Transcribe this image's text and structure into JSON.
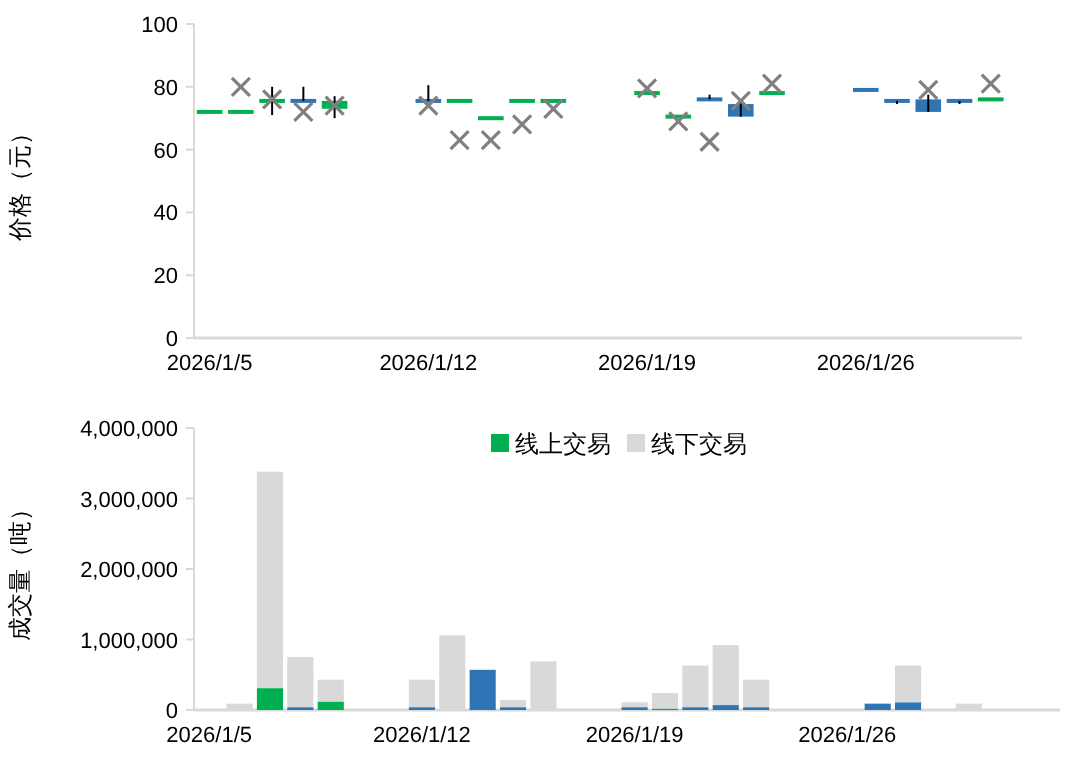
{
  "chart_data": [
    {
      "type": "candlestick",
      "ylabel": "价格（元）",
      "x": [
        "2026-01-05",
        "2026-01-06",
        "2026-01-07",
        "2026-01-08",
        "2026-01-09",
        "2026-01-12",
        "2026-01-13",
        "2026-01-14",
        "2026-01-15",
        "2026-01-16",
        "2026-01-19",
        "2026-01-20",
        "2026-01-21",
        "2026-01-22",
        "2026-01-23",
        "2026-01-26",
        "2026-01-27",
        "2026-01-28",
        "2026-01-29",
        "2026-01-30"
      ],
      "ohlc": [
        [
          72,
          72,
          72,
          72
        ],
        [
          72,
          72,
          72,
          72
        ],
        [
          75.5,
          80,
          71,
          75.5
        ],
        [
          75.5,
          80,
          75.5,
          75.5
        ],
        [
          73,
          77,
          70,
          75.5
        ],
        [
          75.5,
          80.5,
          75.5,
          75.5
        ],
        [
          75.5,
          75.5,
          75.5,
          75.5
        ],
        [
          70,
          70,
          70,
          70
        ],
        [
          75.5,
          75.5,
          75.5,
          75.5
        ],
        [
          75.5,
          75.5,
          75.5,
          75.5
        ],
        [
          78,
          78,
          78,
          78
        ],
        [
          70.5,
          70.5,
          70.5,
          70.5
        ],
        [
          76,
          77.5,
          76,
          76
        ],
        [
          74.5,
          76,
          70.5,
          70.5
        ],
        [
          78,
          78,
          78,
          78
        ],
        [
          79,
          79,
          79,
          79
        ],
        [
          75.5,
          75.5,
          74.5,
          75.5
        ],
        [
          76,
          77.5,
          72,
          72
        ],
        [
          75.5,
          75.5,
          74.5,
          75.5
        ],
        [
          76,
          76,
          76,
          76
        ]
      ],
      "colors": [
        "#00b050",
        "#00b050",
        "#00b050",
        "#2e75b6",
        "#00b050",
        "#2e75b6",
        "#00b050",
        "#00b050",
        "#00b050",
        "#00b050",
        "#00b050",
        "#00b050",
        "#2e75b6",
        "#2e75b6",
        "#00b050",
        "#2e75b6",
        "#2e75b6",
        "#2e75b6",
        "#2e75b6",
        "#00b050"
      ],
      "series": [
        {
          "type": "scatter",
          "marker": "cross",
          "color": "#808080",
          "x": [
            "2026-01-06",
            "2026-01-07",
            "2026-01-08",
            "2026-01-09",
            "2026-01-12",
            "2026-01-13",
            "2026-01-14",
            "2026-01-15",
            "2026-01-16",
            "2026-01-19",
            "2026-01-20",
            "2026-01-21",
            "2026-01-22",
            "2026-01-23",
            "2026-01-28",
            "2026-01-30"
          ],
          "values": [
            80,
            76,
            72,
            74,
            74,
            63,
            63,
            68,
            73,
            79.5,
            69,
            62.5,
            75.5,
            81,
            79,
            81
          ]
        }
      ],
      "xlim": [
        "2026-01-04T12:00",
        "2026-01-31"
      ],
      "xticks": [
        {
          "value": "2026-01-05",
          "label": "2026/1/5"
        },
        {
          "value": "2026-01-12",
          "label": "2026/1/12"
        },
        {
          "value": "2026-01-19",
          "label": "2026/1/19"
        },
        {
          "value": "2026-01-26",
          "label": "2026/1/26"
        }
      ],
      "ylim": [
        0,
        100
      ],
      "yticks": [
        0,
        20,
        40,
        60,
        80,
        100
      ],
      "grid": false
    },
    {
      "type": "bar",
      "stacked": true,
      "ylabel": "成交量（吨）",
      "legend": "top",
      "x": [
        "2026-01-06",
        "2026-01-07",
        "2026-01-08",
        "2026-01-09",
        "2026-01-12",
        "2026-01-13",
        "2026-01-14",
        "2026-01-15",
        "2026-01-16",
        "2026-01-19",
        "2026-01-20",
        "2026-01-21",
        "2026-01-22",
        "2026-01-23",
        "2026-01-27",
        "2026-01-28",
        "2026-01-30"
      ],
      "series": [
        {
          "name": "线上交易",
          "color": "#00b050",
          "colors": [
            null,
            "#00b050",
            "#2e75b6",
            "#00b050",
            "#2e75b6",
            null,
            "#2e75b6",
            "#2e75b6",
            null,
            "#2e75b6",
            "#00b050",
            "#2e75b6",
            "#2e75b6",
            "#2e75b6",
            "#2e75b6",
            "#2e75b6",
            null
          ],
          "values": [
            null,
            310000,
            40000,
            120000,
            40000,
            null,
            570000,
            40000,
            null,
            40000,
            20000,
            40000,
            70000,
            40000,
            90000,
            110000,
            null
          ]
        },
        {
          "name": "线下交易",
          "color": "#d9d9d9",
          "values": [
            90000,
            3070000,
            710000,
            310000,
            390000,
            1060000,
            null,
            100000,
            690000,
            70000,
            220000,
            590000,
            850000,
            390000,
            null,
            520000,
            90000
          ]
        }
      ],
      "xlim": [
        "2026-01-04T12:00",
        "2026-02-02"
      ],
      "xticks": [
        {
          "value": "2026-01-05",
          "label": "2026/1/5"
        },
        {
          "value": "2026-01-12",
          "label": "2026/1/12"
        },
        {
          "value": "2026-01-19",
          "label": "2026/1/19"
        },
        {
          "value": "2026-01-26",
          "label": "2026/1/26"
        }
      ],
      "ylim": [
        0,
        4000000
      ],
      "yticks": [
        {
          "value": 0,
          "label": "0"
        },
        {
          "value": 1000000,
          "label": "1,000,000"
        },
        {
          "value": 2000000,
          "label": "2,000,000"
        },
        {
          "value": 3000000,
          "label": "3,000,000"
        },
        {
          "value": 4000000,
          "label": "4,000,000"
        }
      ],
      "grid": false
    }
  ]
}
